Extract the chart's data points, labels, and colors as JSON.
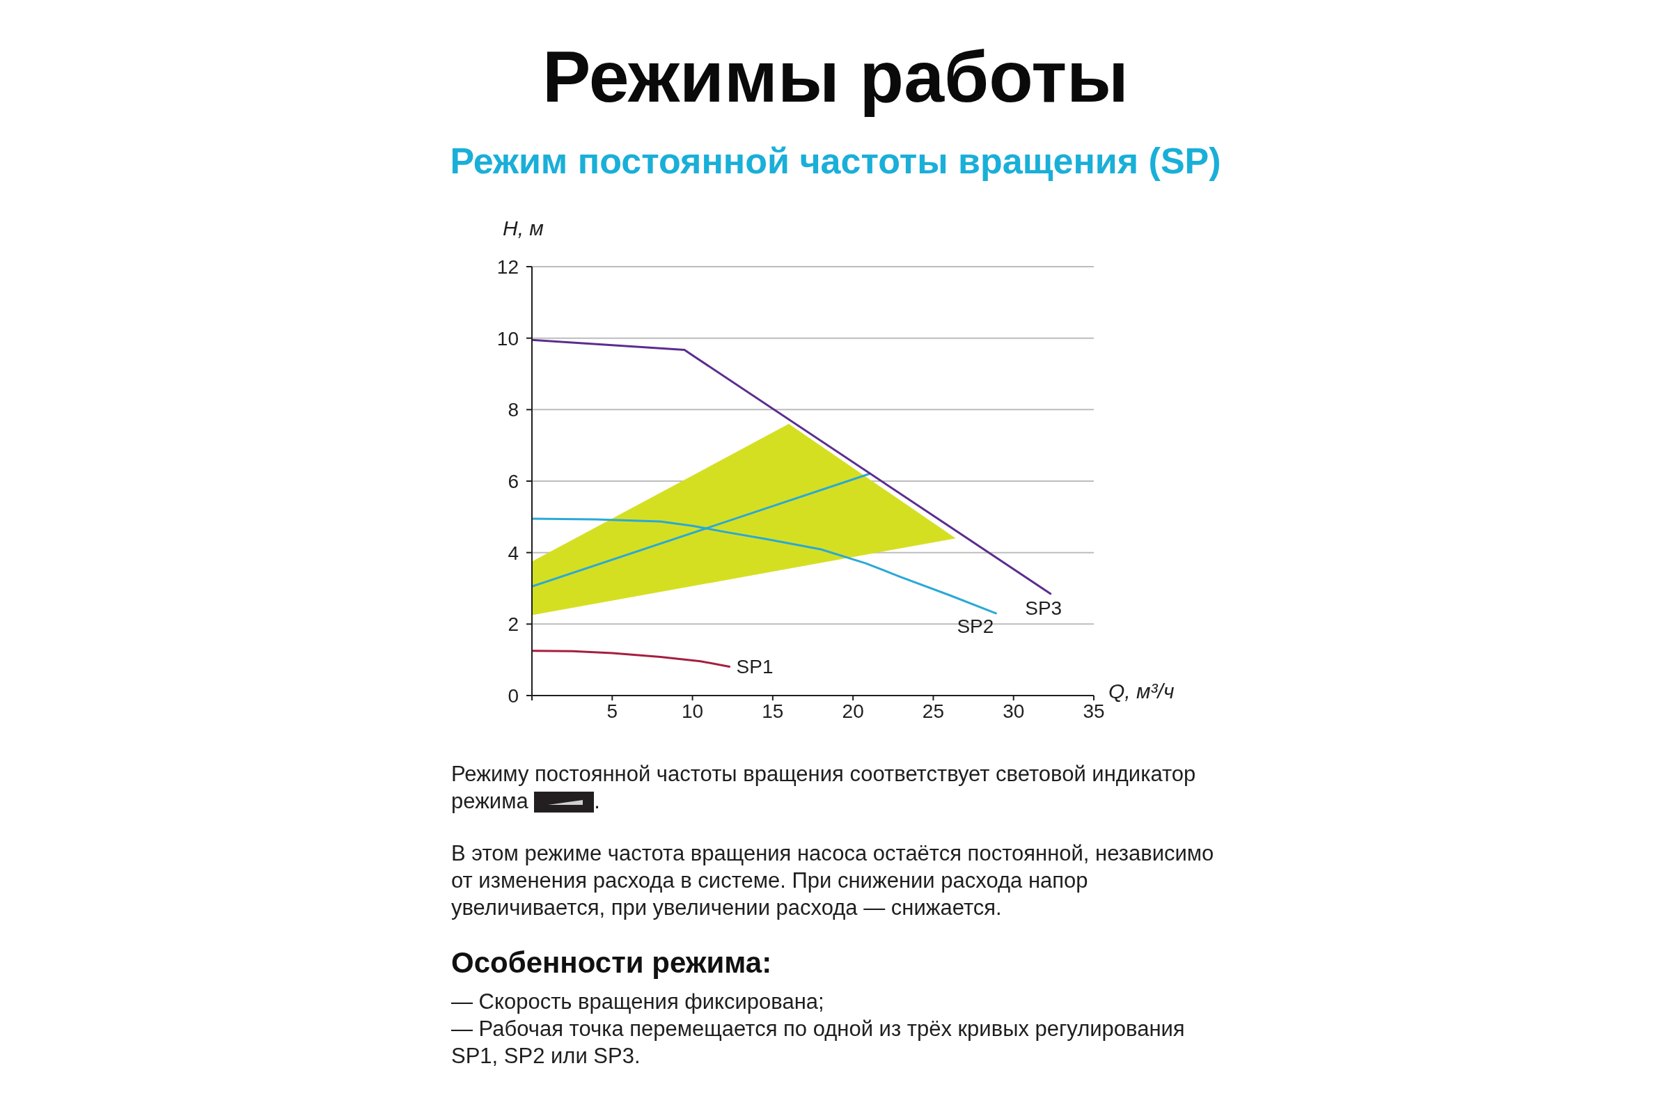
{
  "chart_data": {
    "type": "line",
    "title": "Режимы работы",
    "subtitle": "Режим постоянной частоты вращения (SP)",
    "xlabel": "Q, м³/ч",
    "ylabel": "H, м",
    "xlim": [
      0,
      35
    ],
    "xticks": [
      {
        "value": 0,
        "label": null
      },
      5,
      10,
      15,
      20,
      25,
      30,
      35
    ],
    "ylim": [
      0,
      12
    ],
    "yticks": [
      0,
      2,
      4,
      6,
      8,
      10,
      12
    ],
    "grid": "y",
    "marker": "none",
    "line_style": "solid",
    "series": [
      {
        "color": "#d5df22",
        "x": [
          0,
          16,
          26.4
        ],
        "values": [
          null,
          null,
          null
        ],
        "lower": [
          2.25,
          3.55,
          4.4
        ],
        "upper": [
          3.75,
          7.6,
          4.4
        ]
      },
      {
        "color": "#2aa9d6",
        "x": [
          0,
          21
        ],
        "values": [
          3.05,
          6.2
        ]
      },
      {
        "name": "SP1",
        "color": "#a61e3e",
        "x": [
          0,
          2.5,
          5,
          8,
          10.5,
          12.3
        ],
        "values": [
          1.25,
          1.24,
          1.19,
          1.08,
          0.96,
          0.81
        ]
      },
      {
        "name": "SP2",
        "color": "#2aa9d6",
        "x": [
          0,
          4,
          8,
          10,
          12,
          14.6,
          18,
          20.8,
          22.9,
          26,
          28.9
        ],
        "values": [
          4.95,
          4.93,
          4.87,
          4.75,
          4.58,
          4.38,
          4.09,
          3.7,
          3.33,
          2.81,
          2.3
        ]
      },
      {
        "name": "SP3",
        "color": "#5b2c8f",
        "x": [
          0,
          9.5,
          32.3
        ],
        "values": [
          9.95,
          9.67,
          2.85
        ]
      }
    ],
    "annotations": [
      "Режиму постоянной частоты вращения соответствует световой индикатор режима .",
      "В этом режиме частота вращения насоса остаётся постоянной, независимо от изменения расхода в системе. При снижении расхода напор увеличивается, при увеличении расхода — снижается.",
      "Особенности режима:",
      "— Скорость вращения фиксирована;",
      "— Рабочая точка перемещается по одной из трёх кривых регулирования SP1, SP2 или SP3."
    ]
  }
}
